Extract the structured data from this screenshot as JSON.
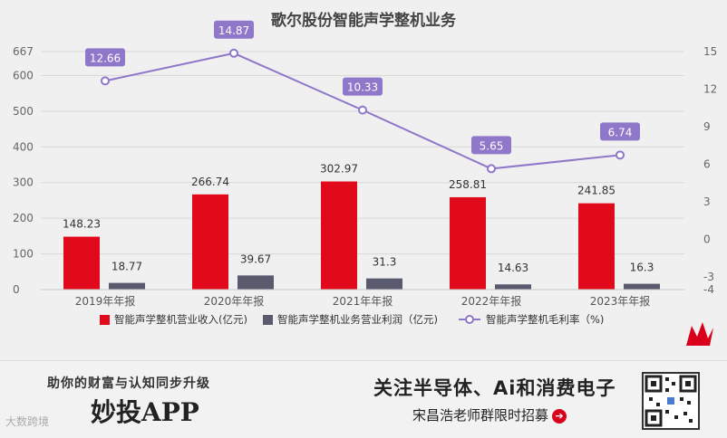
{
  "chart_data": {
    "type": "bar+line",
    "title": "歌尔股份智能声学整机业务",
    "categories": [
      "2019年年报",
      "2020年年报",
      "2021年年报",
      "2022年年报",
      "2023年年报"
    ],
    "series": [
      {
        "name": "智能声学整机营业收入(亿元)",
        "type": "bar",
        "axis": "left",
        "color": "#e00a1a",
        "values": [
          148.23,
          266.74,
          302.97,
          258.81,
          241.85
        ],
        "labels": [
          "148.23",
          "266.74",
          "302.97",
          "258.81",
          "241.85"
        ]
      },
      {
        "name": "智能声学整机业务营业利润（亿元)",
        "type": "bar",
        "axis": "left",
        "color": "#5a5a6e",
        "values": [
          18.77,
          39.67,
          31.3,
          14.63,
          16.3
        ],
        "labels": [
          "18.77",
          "39.67",
          "31.3",
          "14.63",
          "16.3"
        ]
      },
      {
        "name": "智能声学整机毛利率（%)",
        "type": "line",
        "axis": "right",
        "color": "#8f77c9",
        "values": [
          12.66,
          14.87,
          10.33,
          5.65,
          6.74
        ],
        "labels": [
          "12.66",
          "14.87",
          "10.33",
          "5.65",
          "6.74"
        ]
      }
    ],
    "y_left": {
      "ticks": [
        "0",
        "100",
        "200",
        "300",
        "400",
        "500",
        "600",
        "667"
      ],
      "range": [
        0,
        667
      ]
    },
    "y_right": {
      "ticks": [
        "-4",
        "-3",
        "0",
        "3",
        "6",
        "9",
        "12",
        "15"
      ],
      "range": [
        -4,
        15
      ]
    },
    "grid": true,
    "legend": "bottom"
  },
  "banner": {
    "left_line1": "助你的财富与认知同步升级",
    "left_line2": "妙投APP",
    "watermark": "大数跨境",
    "right_line1": "关注半导体、Ai和消费电子",
    "right_line2": "宋昌浩老师群限时招募",
    "arrow_glyph": "➔"
  }
}
